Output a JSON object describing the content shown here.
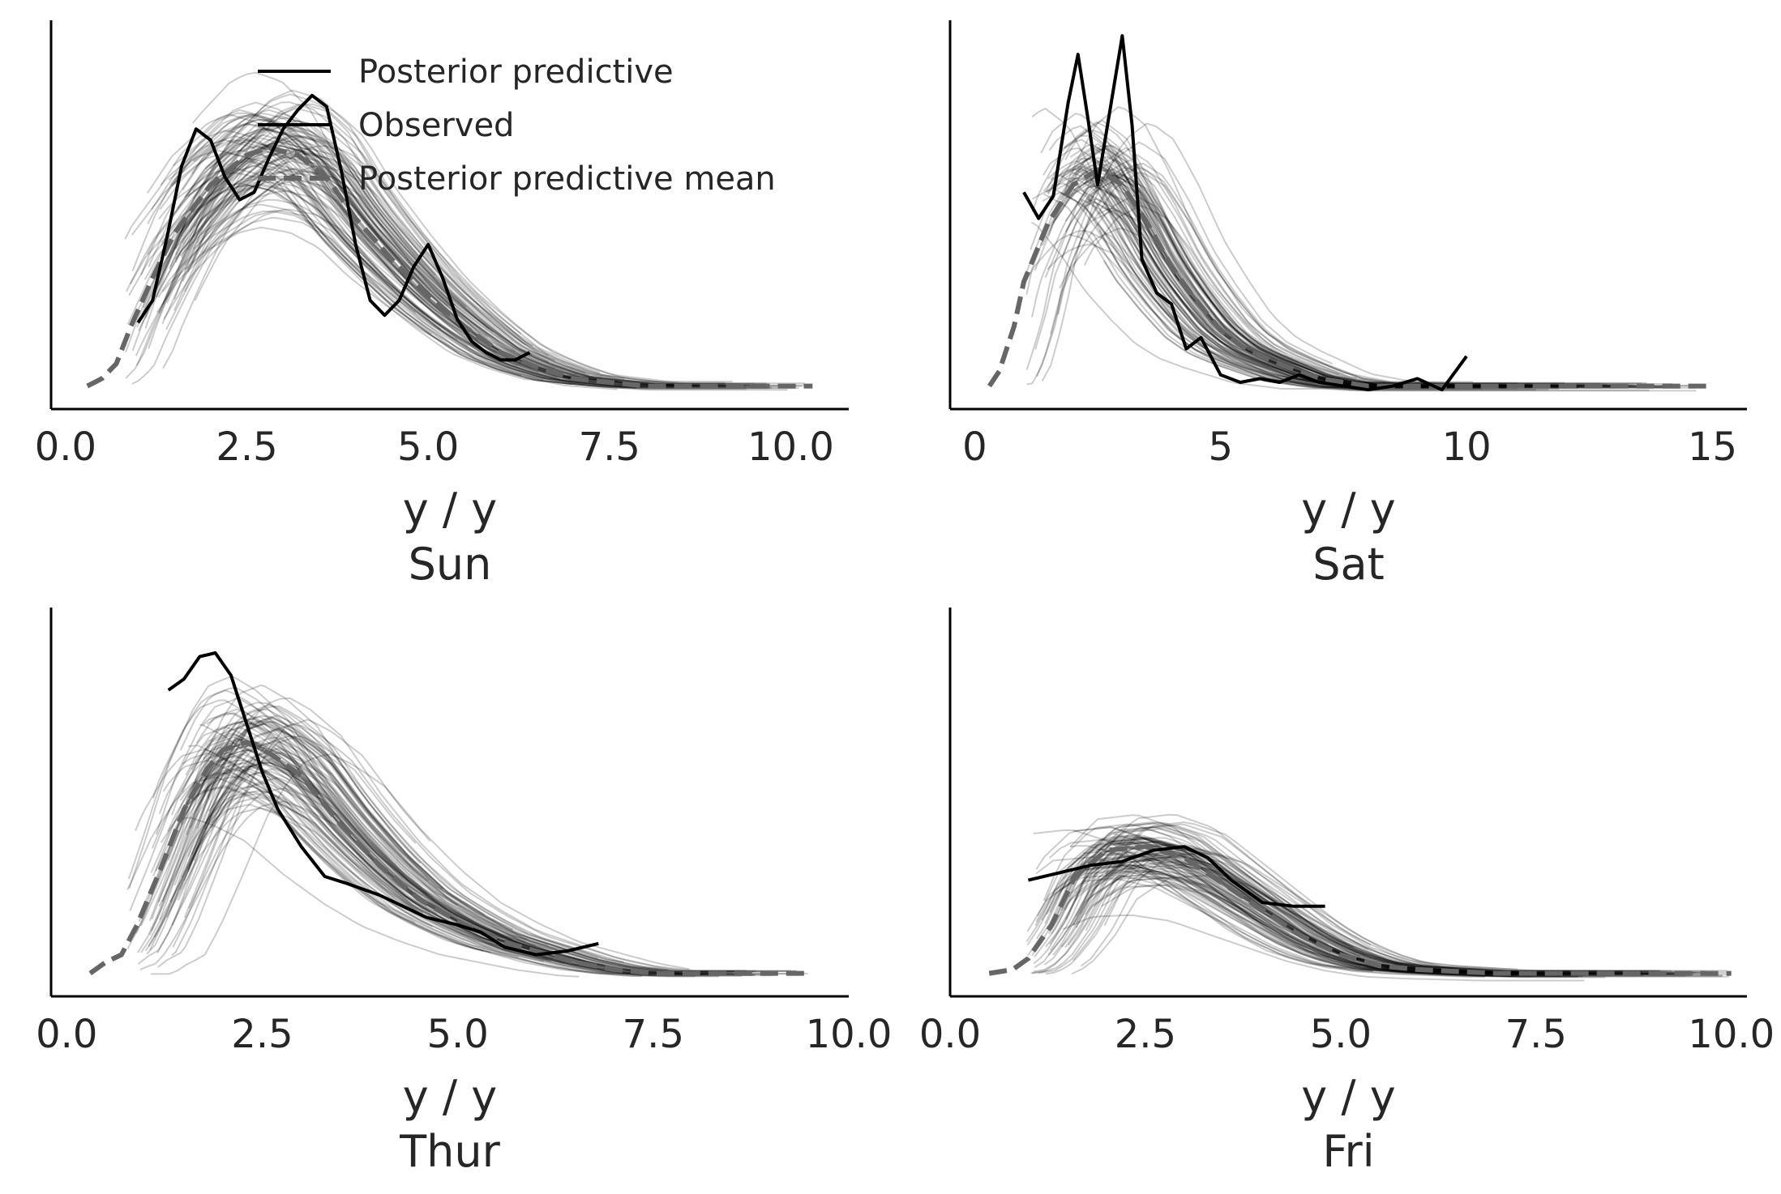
{
  "legend": {
    "entries": [
      {
        "label": "Posterior predictive",
        "color": "#000000",
        "style": "solid"
      },
      {
        "label": "Observed",
        "color": "#000000",
        "style": "solid"
      },
      {
        "label": "Posterior predictive mean",
        "color": "#666666",
        "style": "dashed"
      }
    ],
    "placement": "top-right of first panel"
  },
  "colors": {
    "ppc_lines": "#000000",
    "ppc_alpha": 0.2,
    "observed": "#000000",
    "mean": "#666666",
    "axis": "#000000",
    "text": "#262626"
  },
  "chart_data": [
    {
      "type": "line",
      "title": "Sun",
      "xlabel": "y / y",
      "xlim": [
        -0.2,
        10.8
      ],
      "xticks": [
        0.0,
        2.5,
        5.0,
        7.5,
        10.0
      ],
      "xtick_labels": [
        "0.0",
        "2.5",
        "5.0",
        "7.5",
        "10.0"
      ],
      "ylim": [
        0,
        1
      ],
      "yticks_visible": false,
      "grid": false,
      "posterior_predictive_samples": 100,
      "series": [
        {
          "name": "Observed",
          "x": [
            1.0,
            1.2,
            1.4,
            1.6,
            1.8,
            2.0,
            2.2,
            2.4,
            2.6,
            2.8,
            3.0,
            3.2,
            3.4,
            3.6,
            3.8,
            4.0,
            4.2,
            4.4,
            4.6,
            4.8,
            5.0,
            5.2,
            5.4,
            5.6,
            5.8,
            6.0,
            6.2,
            6.4
          ],
          "y": [
            0.21,
            0.27,
            0.44,
            0.63,
            0.73,
            0.7,
            0.6,
            0.54,
            0.56,
            0.65,
            0.73,
            0.78,
            0.82,
            0.79,
            0.62,
            0.42,
            0.27,
            0.23,
            0.27,
            0.36,
            0.42,
            0.33,
            0.22,
            0.16,
            0.13,
            0.11,
            0.11,
            0.13
          ]
        },
        {
          "name": "Posterior predictive mean",
          "x": [
            0.3,
            0.5,
            0.7,
            0.9,
            1.2,
            1.5,
            2.0,
            2.5,
            2.8,
            3.2,
            3.6,
            4.0,
            4.5,
            5.0,
            5.5,
            6.0,
            6.5,
            7.0,
            7.5,
            8.0,
            8.5,
            9.0,
            9.5,
            10.0,
            10.3
          ],
          "y": [
            0.04,
            0.06,
            0.1,
            0.2,
            0.33,
            0.45,
            0.58,
            0.66,
            0.68,
            0.66,
            0.6,
            0.49,
            0.38,
            0.28,
            0.2,
            0.13,
            0.09,
            0.06,
            0.05,
            0.04,
            0.04,
            0.04,
            0.04,
            0.04,
            0.04
          ]
        }
      ]
    },
    {
      "type": "line",
      "title": "Sat",
      "xlabel": "y / y",
      "xlim": [
        -0.5,
        15.7
      ],
      "xticks": [
        0,
        5,
        10,
        15
      ],
      "xtick_labels": [
        "0",
        "5",
        "10",
        "15"
      ],
      "ylim": [
        0,
        1
      ],
      "yticks_visible": false,
      "grid": false,
      "posterior_predictive_samples": 100,
      "series": [
        {
          "name": "Observed",
          "x": [
            1.0,
            1.3,
            1.6,
            1.9,
            2.1,
            2.3,
            2.5,
            2.7,
            3.0,
            3.2,
            3.4,
            3.7,
            4.0,
            4.3,
            4.6,
            5.0,
            5.4,
            5.8,
            6.2,
            6.6,
            7.0,
            7.5,
            8.0,
            8.5,
            9.0,
            9.5,
            10.0
          ],
          "y": [
            0.56,
            0.49,
            0.55,
            0.8,
            0.93,
            0.76,
            0.58,
            0.74,
            0.98,
            0.74,
            0.38,
            0.29,
            0.26,
            0.14,
            0.17,
            0.07,
            0.05,
            0.06,
            0.05,
            0.07,
            0.05,
            0.04,
            0.03,
            0.04,
            0.06,
            0.03,
            0.12
          ]
        },
        {
          "name": "Posterior predictive mean",
          "x": [
            0.3,
            0.5,
            0.8,
            1.0,
            1.5,
            2.0,
            2.5,
            3.0,
            3.5,
            4.0,
            4.5,
            5.0,
            5.5,
            6.0,
            7.0,
            8.0,
            9.0,
            10.0,
            11.0,
            12.0,
            13.0,
            14.0,
            15.0
          ],
          "y": [
            0.04,
            0.08,
            0.2,
            0.32,
            0.48,
            0.58,
            0.62,
            0.58,
            0.48,
            0.36,
            0.27,
            0.19,
            0.14,
            0.11,
            0.06,
            0.04,
            0.04,
            0.04,
            0.04,
            0.04,
            0.04,
            0.04,
            0.04
          ]
        }
      ]
    },
    {
      "type": "line",
      "title": "Thur",
      "xlabel": "y / y",
      "xlim": [
        -0.2,
        10.0
      ],
      "xticks": [
        0.0,
        2.5,
        5.0,
        7.5,
        10.0
      ],
      "xtick_labels": [
        "0.0",
        "2.5",
        "5.0",
        "7.5",
        "10.0"
      ],
      "ylim": [
        0,
        1
      ],
      "yticks_visible": false,
      "grid": false,
      "posterior_predictive_samples": 100,
      "series": [
        {
          "name": "Observed",
          "x": [
            1.3,
            1.5,
            1.7,
            1.9,
            2.1,
            2.3,
            2.5,
            2.7,
            3.0,
            3.3,
            3.6,
            4.0,
            4.3,
            4.6,
            5.0,
            5.3,
            5.6,
            6.0,
            6.4,
            6.8
          ],
          "y": [
            0.8,
            0.83,
            0.89,
            0.9,
            0.84,
            0.71,
            0.58,
            0.48,
            0.38,
            0.3,
            0.28,
            0.25,
            0.22,
            0.19,
            0.17,
            0.15,
            0.11,
            0.09,
            0.1,
            0.12
          ]
        },
        {
          "name": "Posterior predictive mean",
          "x": [
            0.3,
            0.5,
            0.7,
            0.9,
            1.2,
            1.5,
            1.8,
            2.0,
            2.3,
            2.6,
            3.0,
            3.5,
            4.0,
            4.5,
            5.0,
            5.5,
            6.0,
            6.5,
            7.0,
            7.5,
            8.0,
            8.5,
            9.0,
            9.5
          ],
          "y": [
            0.04,
            0.07,
            0.09,
            0.17,
            0.32,
            0.48,
            0.59,
            0.64,
            0.66,
            0.63,
            0.57,
            0.44,
            0.33,
            0.24,
            0.18,
            0.13,
            0.1,
            0.07,
            0.05,
            0.04,
            0.04,
            0.04,
            0.04,
            0.04
          ]
        }
      ]
    },
    {
      "type": "line",
      "title": "Fri",
      "xlabel": "y / y",
      "xlim": [
        0.0,
        10.2
      ],
      "xticks": [
        0.0,
        2.5,
        5.0,
        7.5,
        10.0
      ],
      "xtick_labels": [
        "0.0",
        "2.5",
        "5.0",
        "7.5",
        "10.0"
      ],
      "ylim": [
        0,
        1
      ],
      "yticks_visible": false,
      "grid": false,
      "posterior_predictive_samples": 100,
      "series": [
        {
          "name": "Observed",
          "x": [
            1.0,
            1.4,
            1.8,
            2.2,
            2.6,
            3.0,
            3.3,
            3.6,
            4.0,
            4.4,
            4.8
          ],
          "y": [
            0.29,
            0.31,
            0.33,
            0.34,
            0.37,
            0.38,
            0.35,
            0.29,
            0.23,
            0.22,
            0.22
          ]
        },
        {
          "name": "Posterior predictive mean",
          "x": [
            0.5,
            0.8,
            1.0,
            1.3,
            1.6,
            2.0,
            2.5,
            3.0,
            3.5,
            4.0,
            4.5,
            5.0,
            5.5,
            6.0,
            7.0,
            8.0,
            9.0,
            10.0
          ],
          "y": [
            0.04,
            0.05,
            0.08,
            0.17,
            0.3,
            0.37,
            0.38,
            0.35,
            0.28,
            0.21,
            0.14,
            0.09,
            0.06,
            0.05,
            0.04,
            0.04,
            0.04,
            0.04
          ]
        }
      ]
    }
  ]
}
